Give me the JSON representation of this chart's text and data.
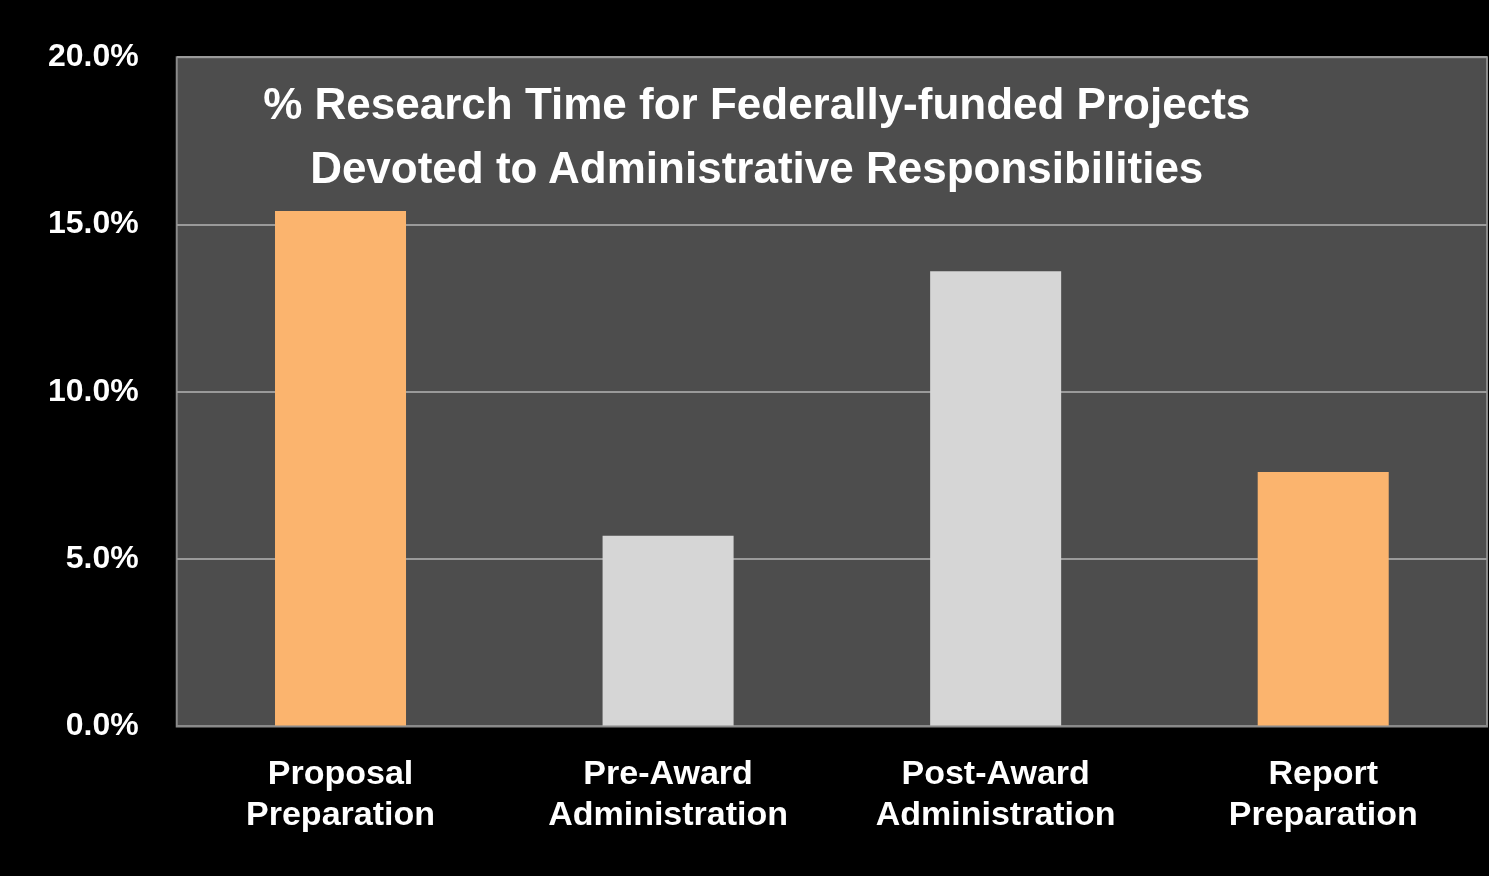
{
  "chart_data": {
    "type": "bar",
    "title": "% Research Time for Federally-funded Projects Devoted to Administrative Responsibilities",
    "categories": [
      "Proposal Preparation",
      "Pre-Award Administration",
      "Post-Award Administration",
      "Report Preparation"
    ],
    "values": [
      15.4,
      5.7,
      13.6,
      7.6
    ],
    "colors": [
      "#fbb46e",
      "#d6d6d6",
      "#d6d6d6",
      "#fbb46e"
    ],
    "ylim": [
      0,
      20
    ],
    "yticks": [
      {
        "value": 0,
        "label": "0.0%"
      },
      {
        "value": 5,
        "label": "5.0%"
      },
      {
        "value": 10,
        "label": "10.0%"
      },
      {
        "value": 15,
        "label": "15.0%"
      },
      {
        "value": 20,
        "label": "20.0%"
      }
    ],
    "grid": "y",
    "legend": false
  }
}
